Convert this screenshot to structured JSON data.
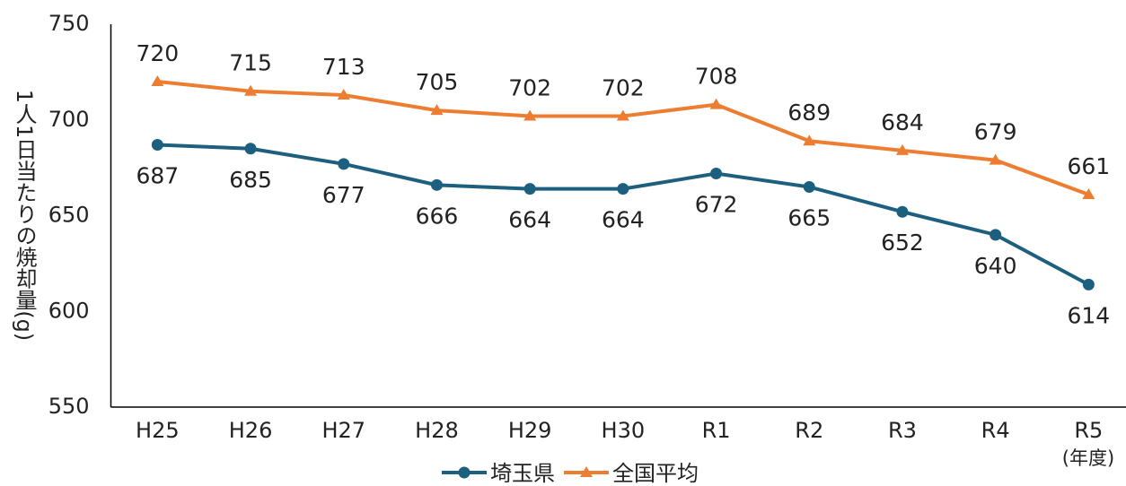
{
  "chart_data": {
    "type": "line",
    "y_label": "1人1日当たりの焼却量(g)",
    "x_annotation": "(年度)",
    "categories": [
      "H25",
      "H26",
      "H27",
      "H28",
      "H29",
      "H30",
      "R1",
      "R2",
      "R3",
      "R4",
      "R5"
    ],
    "series": [
      {
        "name": "埼玉県",
        "color": "#1d5f7e",
        "marker": "circle",
        "label_position": "below",
        "values": [
          687,
          685,
          677,
          666,
          664,
          664,
          672,
          665,
          652,
          640,
          614
        ]
      },
      {
        "name": "全国平均",
        "color": "#ed7d31",
        "marker": "triangle",
        "label_position": "above",
        "values": [
          720,
          715,
          713,
          705,
          702,
          702,
          708,
          689,
          684,
          679,
          661
        ]
      }
    ],
    "ylim": [
      550,
      750
    ],
    "yticks": [
      550,
      600,
      650,
      700,
      750
    ],
    "grid": false,
    "legend": "bottom"
  }
}
